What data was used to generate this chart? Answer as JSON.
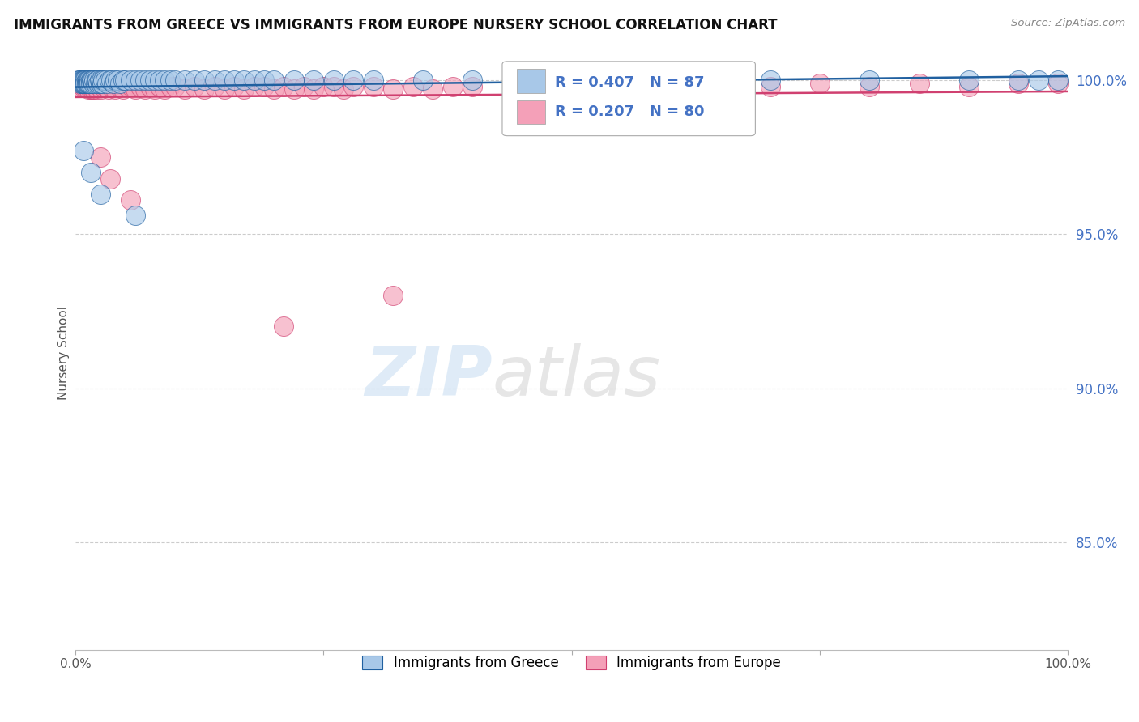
{
  "title": "IMMIGRANTS FROM GREECE VS IMMIGRANTS FROM EUROPE NURSERY SCHOOL CORRELATION CHART",
  "source": "Source: ZipAtlas.com",
  "ylabel": "Nursery School",
  "xlim": [
    0.0,
    1.0
  ],
  "ylim": [
    0.815,
    1.008
  ],
  "yticks": [
    0.85,
    0.9,
    0.95,
    1.0
  ],
  "ytick_labels": [
    "85.0%",
    "90.0%",
    "95.0%",
    "100.0%"
  ],
  "xticks": [
    0.0,
    1.0
  ],
  "xtick_labels": [
    "0.0%",
    "100.0%"
  ],
  "R_greece": 0.407,
  "N_greece": 87,
  "R_europe": 0.207,
  "N_europe": 80,
  "color_greece": "#a8c8e8",
  "color_europe": "#f4a0b8",
  "trendline_greece": "#2060a0",
  "trendline_europe": "#d04070",
  "legend_label_greece": "Immigrants from Greece",
  "legend_label_europe": "Immigrants from Europe",
  "background_color": "#ffffff",
  "greece_x": [
    0.003,
    0.004,
    0.005,
    0.005,
    0.006,
    0.006,
    0.007,
    0.007,
    0.008,
    0.008,
    0.009,
    0.009,
    0.01,
    0.01,
    0.011,
    0.011,
    0.012,
    0.012,
    0.013,
    0.013,
    0.014,
    0.014,
    0.015,
    0.015,
    0.016,
    0.017,
    0.018,
    0.019,
    0.02,
    0.021,
    0.022,
    0.023,
    0.024,
    0.025,
    0.026,
    0.027,
    0.028,
    0.03,
    0.032,
    0.034,
    0.036,
    0.038,
    0.04,
    0.042,
    0.045,
    0.048,
    0.05,
    0.055,
    0.06,
    0.065,
    0.07,
    0.075,
    0.08,
    0.085,
    0.09,
    0.095,
    0.1,
    0.11,
    0.12,
    0.13,
    0.14,
    0.15,
    0.16,
    0.17,
    0.18,
    0.19,
    0.2,
    0.22,
    0.24,
    0.26,
    0.28,
    0.3,
    0.35,
    0.4,
    0.45,
    0.5,
    0.6,
    0.7,
    0.8,
    0.9,
    0.95,
    0.97,
    0.99,
    0.008,
    0.015,
    0.025,
    0.06
  ],
  "greece_y": [
    1.0,
    1.0,
    1.0,
    0.999,
    1.0,
    0.999,
    1.0,
    0.999,
    1.0,
    0.999,
    1.0,
    0.999,
    1.0,
    0.999,
    1.0,
    0.999,
    1.0,
    0.999,
    1.0,
    0.999,
    1.0,
    0.999,
    1.0,
    0.999,
    1.0,
    1.0,
    0.999,
    1.0,
    0.999,
    1.0,
    1.0,
    0.999,
    1.0,
    0.999,
    1.0,
    0.999,
    1.0,
    1.0,
    0.999,
    1.0,
    1.0,
    0.999,
    1.0,
    1.0,
    0.999,
    1.0,
    1.0,
    1.0,
    1.0,
    1.0,
    1.0,
    1.0,
    1.0,
    1.0,
    1.0,
    1.0,
    1.0,
    1.0,
    1.0,
    1.0,
    1.0,
    1.0,
    1.0,
    1.0,
    1.0,
    1.0,
    1.0,
    1.0,
    1.0,
    1.0,
    1.0,
    1.0,
    1.0,
    1.0,
    1.0,
    1.0,
    1.0,
    1.0,
    1.0,
    1.0,
    1.0,
    1.0,
    1.0,
    0.977,
    0.97,
    0.963,
    0.956
  ],
  "europe_x": [
    0.003,
    0.004,
    0.005,
    0.006,
    0.007,
    0.008,
    0.009,
    0.01,
    0.011,
    0.012,
    0.013,
    0.014,
    0.015,
    0.016,
    0.017,
    0.018,
    0.019,
    0.02,
    0.022,
    0.024,
    0.026,
    0.028,
    0.03,
    0.033,
    0.036,
    0.04,
    0.044,
    0.048,
    0.052,
    0.056,
    0.06,
    0.065,
    0.07,
    0.075,
    0.08,
    0.085,
    0.09,
    0.095,
    0.1,
    0.11,
    0.12,
    0.13,
    0.14,
    0.15,
    0.16,
    0.17,
    0.18,
    0.19,
    0.2,
    0.21,
    0.22,
    0.23,
    0.24,
    0.25,
    0.26,
    0.27,
    0.28,
    0.3,
    0.32,
    0.34,
    0.36,
    0.38,
    0.4,
    0.45,
    0.5,
    0.55,
    0.6,
    0.65,
    0.7,
    0.75,
    0.8,
    0.85,
    0.9,
    0.95,
    0.99,
    0.025,
    0.035,
    0.055,
    0.32,
    0.21
  ],
  "europe_y": [
    0.999,
    0.999,
    0.998,
    0.999,
    0.998,
    0.999,
    0.998,
    0.999,
    0.998,
    0.999,
    0.997,
    0.998,
    0.997,
    0.998,
    0.997,
    0.998,
    0.997,
    0.998,
    0.997,
    0.998,
    0.997,
    0.998,
    0.998,
    0.997,
    0.998,
    0.997,
    0.998,
    0.997,
    0.998,
    0.998,
    0.997,
    0.998,
    0.997,
    0.998,
    0.997,
    0.998,
    0.997,
    0.998,
    0.998,
    0.997,
    0.998,
    0.997,
    0.998,
    0.997,
    0.998,
    0.997,
    0.998,
    0.998,
    0.997,
    0.998,
    0.997,
    0.998,
    0.997,
    0.998,
    0.998,
    0.997,
    0.998,
    0.998,
    0.997,
    0.998,
    0.997,
    0.998,
    0.998,
    0.997,
    0.998,
    0.998,
    0.997,
    0.998,
    0.998,
    0.999,
    0.998,
    0.999,
    0.998,
    0.999,
    0.999,
    0.975,
    0.968,
    0.961,
    0.93,
    0.92
  ]
}
